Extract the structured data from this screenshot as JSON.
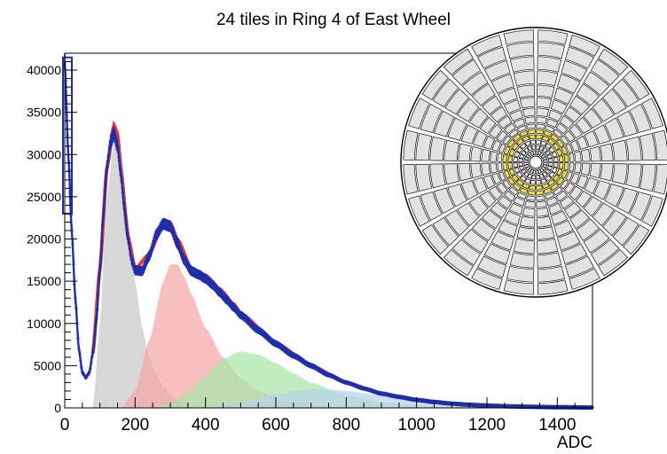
{
  "chart_data": {
    "type": "area",
    "title": "24 tiles in Ring 4 of East Wheel",
    "xlabel": "ADC",
    "ylabel": "",
    "xlim": [
      0,
      1500
    ],
    "ylim": [
      0,
      42000
    ],
    "x_ticks": [
      "0",
      "200",
      "400",
      "600",
      "800",
      "1000",
      "1200",
      "1400"
    ],
    "y_ticks": [
      "0",
      "5000",
      "10000",
      "15000",
      "20000",
      "25000",
      "30000",
      "35000",
      "40000"
    ],
    "grid": false,
    "legend": "none",
    "series": [
      {
        "role": "data",
        "style": "markers-with-errorbars",
        "color": "#1f2fa8",
        "x": [
          0,
          10,
          20,
          30,
          40,
          50,
          60,
          70,
          80,
          90,
          100,
          110,
          120,
          130,
          140,
          150,
          160,
          170,
          180,
          190,
          200,
          220,
          240,
          260,
          280,
          300,
          320,
          340,
          360,
          380,
          400,
          420,
          440,
          460,
          480,
          500,
          550,
          600,
          650,
          700,
          750,
          800,
          850,
          900,
          950,
          1000,
          1050,
          1100,
          1150,
          1200,
          1250,
          1300,
          1350,
          1400,
          1450,
          1500
        ],
        "values": [
          41000,
          30000,
          21000,
          13000,
          7000,
          4200,
          3600,
          4200,
          6500,
          10500,
          16500,
          23000,
          28500,
          31500,
          32500,
          31000,
          27500,
          23500,
          20000,
          17500,
          16300,
          16200,
          18000,
          20500,
          21800,
          21500,
          19500,
          17500,
          16200,
          15800,
          15300,
          14600,
          13700,
          12800,
          11900,
          11000,
          9200,
          7600,
          6200,
          5000,
          3900,
          3000,
          2300,
          1700,
          1300,
          950,
          700,
          500,
          370,
          270,
          200,
          150,
          110,
          80,
          60,
          40
        ]
      },
      {
        "role": "fit-total",
        "style": "line",
        "color": "#e83a3a",
        "x": [
          80,
          100,
          120,
          140,
          150,
          160,
          180,
          200,
          240,
          280,
          300,
          320,
          360,
          400,
          440,
          480,
          500,
          600,
          700,
          800,
          900,
          1000,
          1100,
          1200,
          1300,
          1400,
          1500
        ],
        "values": [
          6500,
          16500,
          28500,
          33500,
          32500,
          28000,
          20200,
          16500,
          18200,
          21800,
          21900,
          20000,
          16500,
          15700,
          14100,
          12300,
          11200,
          7700,
          5000,
          3000,
          1700,
          950,
          500,
          270,
          150,
          80,
          40
        ]
      },
      {
        "role": "component-1",
        "style": "filled-area",
        "color": "#c8c8c8",
        "x": [
          80,
          100,
          120,
          140,
          150,
          160,
          180,
          200,
          220,
          240,
          260,
          280,
          300,
          320,
          350,
          400,
          450
        ],
        "values": [
          0,
          10000,
          25000,
          31500,
          32500,
          30500,
          22500,
          15000,
          9500,
          6000,
          4000,
          2500,
          1500,
          900,
          400,
          100,
          0
        ]
      },
      {
        "role": "component-2",
        "style": "filled-area",
        "color": "#f4a6a6",
        "x": [
          160,
          200,
          240,
          280,
          300,
          320,
          340,
          360,
          400,
          450,
          500,
          550,
          600,
          650,
          700,
          800,
          900
        ],
        "values": [
          0,
          2000,
          8000,
          15000,
          17000,
          17000,
          15500,
          13500,
          9500,
          6000,
          3500,
          2000,
          1200,
          700,
          400,
          100,
          0
        ]
      },
      {
        "role": "component-3",
        "style": "filled-area",
        "color": "#a8e6a8",
        "x": [
          250,
          300,
          350,
          400,
          450,
          500,
          550,
          600,
          650,
          700,
          800,
          900,
          1000,
          1100,
          1200
        ],
        "values": [
          0,
          500,
          1800,
          3800,
          5800,
          6700,
          6300,
          5300,
          4100,
          3000,
          1500,
          700,
          300,
          100,
          0
        ]
      },
      {
        "role": "component-4",
        "style": "filled-area",
        "color": "#b8d2ec",
        "x": [
          400,
          500,
          600,
          650,
          700,
          750,
          800,
          900,
          1000,
          1100,
          1200,
          1300,
          1400,
          1500
        ],
        "values": [
          0,
          700,
          1600,
          2000,
          2200,
          2200,
          2000,
          1500,
          1000,
          600,
          330,
          180,
          90,
          40
        ]
      }
    ]
  },
  "inset": {
    "description_icon": "detector-wheel-icon",
    "highlight_color": "#e8d94a",
    "rings": 16,
    "sectors": 24,
    "highlighted_ring": 4
  }
}
